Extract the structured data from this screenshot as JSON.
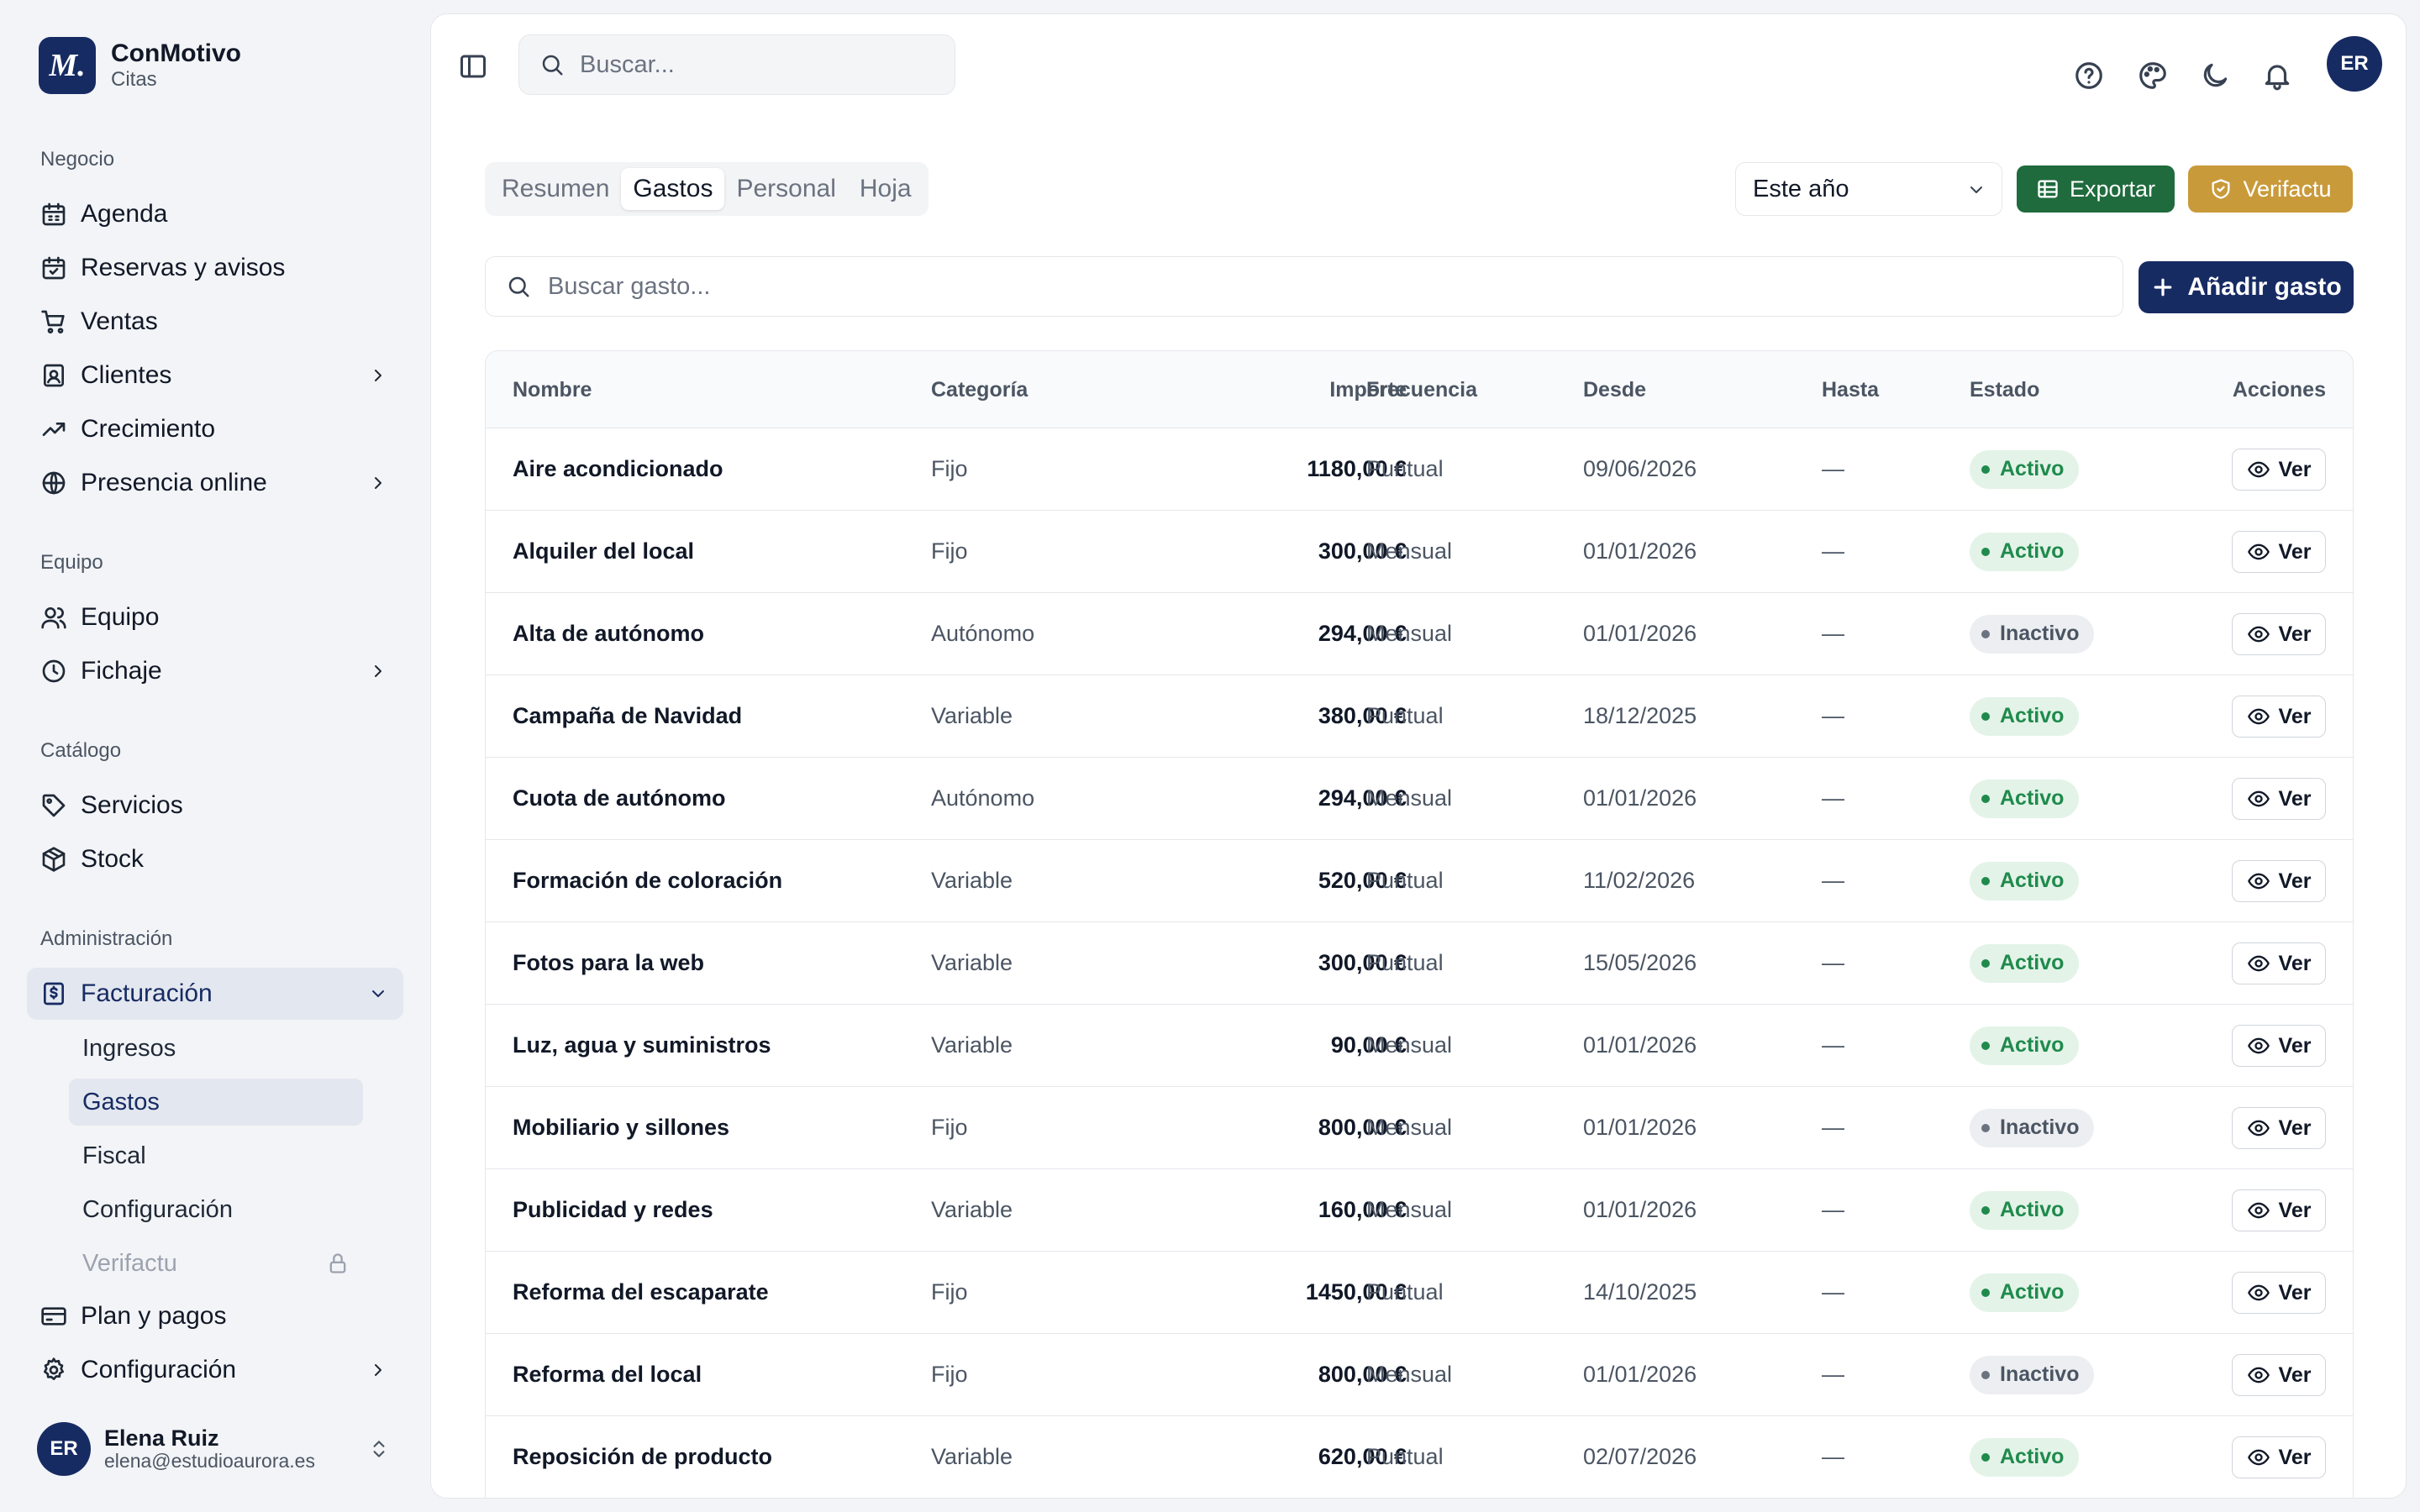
{
  "brand": {
    "logo_letter": "M.",
    "name": "ConMotivo",
    "subtitle": "Citas"
  },
  "sidebar": {
    "groups": [
      {
        "title": "Negocio",
        "items": [
          {
            "label": "Agenda",
            "icon": "calendar-icon"
          },
          {
            "label": "Reservas y avisos",
            "icon": "calendar-check-icon"
          },
          {
            "label": "Ventas",
            "icon": "cart-icon"
          },
          {
            "label": "Clientes",
            "icon": "contact-icon",
            "expandable": true
          },
          {
            "label": "Crecimiento",
            "icon": "trending-up-icon"
          },
          {
            "label": "Presencia online",
            "icon": "globe-icon",
            "expandable": true
          }
        ]
      },
      {
        "title": "Equipo",
        "items": [
          {
            "label": "Equipo",
            "icon": "users-icon"
          },
          {
            "label": "Fichaje",
            "icon": "clock-icon",
            "expandable": true
          }
        ]
      },
      {
        "title": "Catálogo",
        "items": [
          {
            "label": "Servicios",
            "icon": "tag-icon"
          },
          {
            "label": "Stock",
            "icon": "package-icon"
          }
        ]
      },
      {
        "title": "Administración",
        "items": [
          {
            "label": "Facturación",
            "icon": "receipt-icon",
            "expanded": true,
            "active": true
          },
          {
            "label": "Plan y pagos",
            "icon": "credit-card-icon"
          },
          {
            "label": "Configuración",
            "icon": "gear-icon",
            "expandable": true
          }
        ]
      }
    ],
    "billing_subitems": [
      {
        "label": "Ingresos"
      },
      {
        "label": "Gastos",
        "active": true
      },
      {
        "label": "Fiscal"
      },
      {
        "label": "Configuración"
      },
      {
        "label": "Verifactu",
        "locked": true
      }
    ]
  },
  "user": {
    "initials": "ER",
    "name": "Elena Ruiz",
    "email": "elena@estudioaurora.es"
  },
  "topbar": {
    "search_placeholder": "Buscar...",
    "avatar_initials": "ER"
  },
  "tabs": [
    {
      "label": "Resumen"
    },
    {
      "label": "Gastos",
      "active": true
    },
    {
      "label": "Personal"
    },
    {
      "label": "Hoja"
    }
  ],
  "period_select": {
    "value": "Este año"
  },
  "actions": {
    "export_label": "Exportar",
    "verifactu_label": "Verifactu",
    "add_label": "Añadir gasto"
  },
  "expense_search": {
    "placeholder": "Buscar gasto..."
  },
  "colors": {
    "primary": "#172b63",
    "export": "#1f6b3d",
    "verifactu": "#c99a3a",
    "active_badge": "#1f8a4c"
  },
  "table": {
    "headers": {
      "name": "Nombre",
      "category": "Categoría",
      "amount": "Importe",
      "frequency": "Frecuencia",
      "from": "Desde",
      "to": "Hasta",
      "status": "Estado",
      "actions": "Acciones"
    },
    "view_label": "Ver",
    "rows": [
      {
        "name": "Aire acondicionado",
        "category": "Fijo",
        "amount": "1180,00 €",
        "frequency": "Puntual",
        "from": "09/06/2026",
        "to": "—",
        "status": "Activo",
        "active": true
      },
      {
        "name": "Alquiler del local",
        "category": "Fijo",
        "amount": "300,00 €",
        "frequency": "Mensual",
        "from": "01/01/2026",
        "to": "—",
        "status": "Activo",
        "active": true
      },
      {
        "name": "Alta de autónomo",
        "category": "Autónomo",
        "amount": "294,00 €",
        "frequency": "Mensual",
        "from": "01/01/2026",
        "to": "—",
        "status": "Inactivo",
        "active": false
      },
      {
        "name": "Campaña de Navidad",
        "category": "Variable",
        "amount": "380,00 €",
        "frequency": "Puntual",
        "from": "18/12/2025",
        "to": "—",
        "status": "Activo",
        "active": true
      },
      {
        "name": "Cuota de autónomo",
        "category": "Autónomo",
        "amount": "294,00 €",
        "frequency": "Mensual",
        "from": "01/01/2026",
        "to": "—",
        "status": "Activo",
        "active": true
      },
      {
        "name": "Formación de coloración",
        "category": "Variable",
        "amount": "520,00 €",
        "frequency": "Puntual",
        "from": "11/02/2026",
        "to": "—",
        "status": "Activo",
        "active": true
      },
      {
        "name": "Fotos para la web",
        "category": "Variable",
        "amount": "300,00 €",
        "frequency": "Puntual",
        "from": "15/05/2026",
        "to": "—",
        "status": "Activo",
        "active": true
      },
      {
        "name": "Luz, agua y suministros",
        "category": "Variable",
        "amount": "90,00 €",
        "frequency": "Mensual",
        "from": "01/01/2026",
        "to": "—",
        "status": "Activo",
        "active": true
      },
      {
        "name": "Mobiliario y sillones",
        "category": "Fijo",
        "amount": "800,00 €",
        "frequency": "Mensual",
        "from": "01/01/2026",
        "to": "—",
        "status": "Inactivo",
        "active": false
      },
      {
        "name": "Publicidad y redes",
        "category": "Variable",
        "amount": "160,00 €",
        "frequency": "Mensual",
        "from": "01/01/2026",
        "to": "—",
        "status": "Activo",
        "active": true
      },
      {
        "name": "Reforma del escaparate",
        "category": "Fijo",
        "amount": "1450,00 €",
        "frequency": "Puntual",
        "from": "14/10/2025",
        "to": "—",
        "status": "Activo",
        "active": true
      },
      {
        "name": "Reforma del local",
        "category": "Fijo",
        "amount": "800,00 €",
        "frequency": "Mensual",
        "from": "01/01/2026",
        "to": "—",
        "status": "Inactivo",
        "active": false
      },
      {
        "name": "Reposición de producto",
        "category": "Variable",
        "amount": "620,00 €",
        "frequency": "Puntual",
        "from": "02/07/2026",
        "to": "—",
        "status": "Activo",
        "active": true
      }
    ]
  }
}
